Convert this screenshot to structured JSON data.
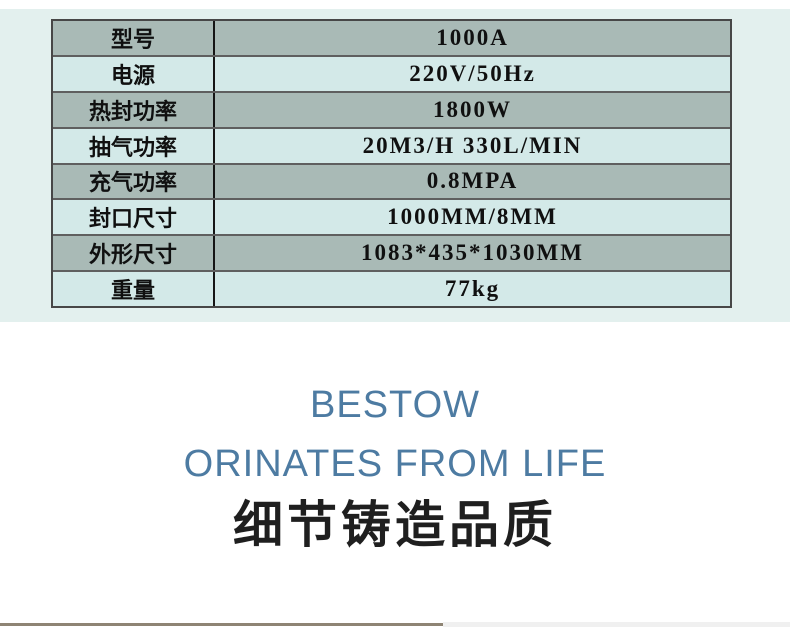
{
  "colors": {
    "band": "#e3f0ee",
    "row_odd": "#a9bab6",
    "row_even": "#d3e9e8",
    "border_dark": "#474747",
    "accent": "#4d7ba2",
    "headline": "#1f1f1f",
    "divider_tan": "#8e8474"
  },
  "spec_table": {
    "rows": [
      {
        "label": "型号",
        "value": "1000A"
      },
      {
        "label": "电源",
        "value": "220V/50Hz"
      },
      {
        "label": "热封功率",
        "value": "1800W"
      },
      {
        "label": "抽气功率",
        "value": "20M3/H 330L/MIN"
      },
      {
        "label": "充气功率",
        "value": "0.8MPA"
      },
      {
        "label": "封口尺寸",
        "value": "1000MM/8MM"
      },
      {
        "label": "外形尺寸",
        "value": "1083*435*1030MM"
      },
      {
        "label": "重量",
        "value": "77kg"
      }
    ]
  },
  "slogan": {
    "line1": "BESTOW",
    "line2": "ORINATES FROM LIFE",
    "line3": "细节铸造品质"
  }
}
